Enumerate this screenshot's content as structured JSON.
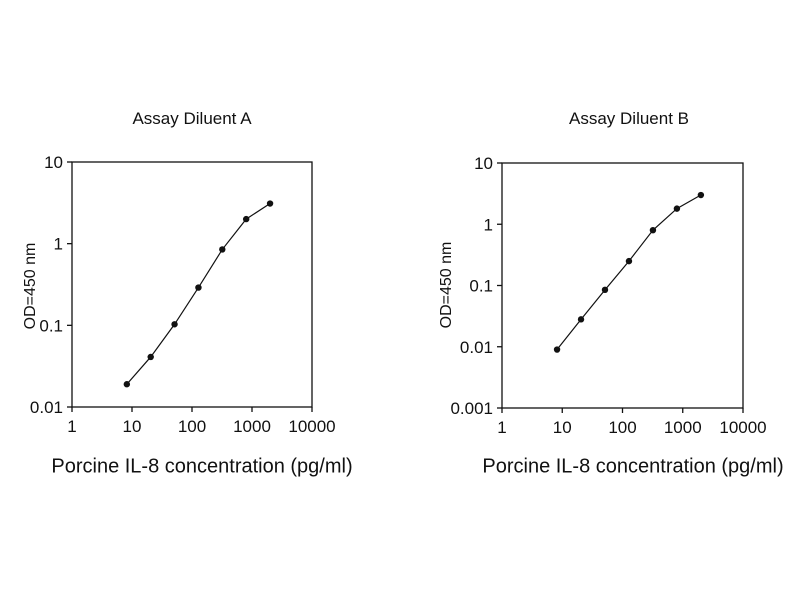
{
  "figure": {
    "background": "#ffffff",
    "ink_color": "#111111"
  },
  "chart_data": [
    {
      "type": "line",
      "title": "Assay Diluent A",
      "xlabel": "Porcine IL-8 concentration (pg/ml)",
      "ylabel": "OD=450 nm",
      "x_scale": "log",
      "y_scale": "log",
      "xlim": [
        1,
        10000
      ],
      "ylim": [
        0.01,
        10
      ],
      "x_tick_labels": [
        "1",
        "10",
        "100",
        "1000",
        "10000"
      ],
      "y_tick_labels": [
        "10",
        "1",
        "0.1",
        "0.01"
      ],
      "x": [
        8.2,
        20.5,
        51.2,
        128,
        320,
        800,
        2000
      ],
      "y": [
        0.019,
        0.041,
        0.103,
        0.29,
        0.85,
        2.0,
        3.1
      ],
      "line_color": "#111111",
      "marker_color": "#111111",
      "grid": false,
      "legend": null
    },
    {
      "type": "line",
      "title": "Assay Diluent B",
      "xlabel": "Porcine IL-8 concentration (pg/ml)",
      "ylabel": "OD=450 nm",
      "x_scale": "log",
      "y_scale": "log",
      "xlim": [
        1,
        10000
      ],
      "ylim": [
        0.001,
        10
      ],
      "x_tick_labels": [
        "1",
        "10",
        "100",
        "1000",
        "10000"
      ],
      "y_tick_labels": [
        "10",
        "1",
        "0.1",
        "0.01",
        "0.001"
      ],
      "x": [
        8.2,
        20.5,
        51.2,
        128,
        320,
        800,
        2000
      ],
      "y": [
        0.009,
        0.028,
        0.085,
        0.25,
        0.8,
        1.8,
        3.0
      ],
      "line_color": "#111111",
      "marker_color": "#111111",
      "grid": false,
      "legend": null
    }
  ]
}
